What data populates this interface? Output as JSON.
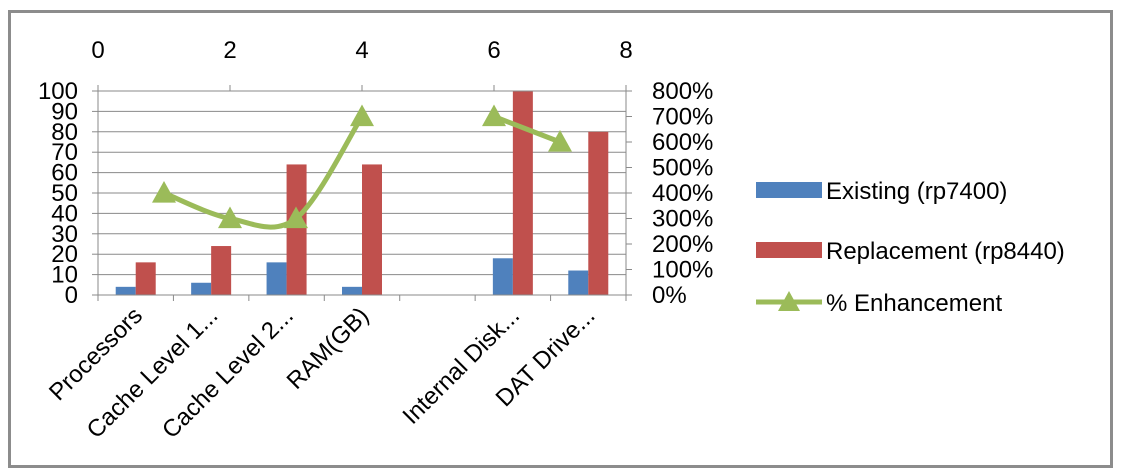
{
  "chart_data": {
    "type": "bar",
    "categories": [
      "Processors",
      "Cache Level 1...",
      "Cache Level 2...",
      "RAM(GB)",
      "",
      "Internal Disk...",
      "DAT Drive..."
    ],
    "series": [
      {
        "name": "Existing  (rp7400)",
        "type": "bar",
        "axis": "primary-y",
        "color": "#4f81bd",
        "values": [
          4,
          6,
          16,
          4,
          null,
          18,
          12
        ]
      },
      {
        "name": "Replacement (rp8440)",
        "type": "bar",
        "axis": "primary-y",
        "color": "#c0504d",
        "values": [
          16,
          24,
          64,
          64,
          null,
          100,
          80
        ]
      },
      {
        "name": "% Enhancement",
        "type": "line",
        "marker": "triangle",
        "axis": "secondary-y",
        "color": "#9bbb59",
        "x": [
          1,
          2,
          3,
          4,
          6,
          7
        ],
        "values": [
          400,
          300,
          300,
          700,
          700,
          600
        ]
      }
    ],
    "y_axis": {
      "min": 0,
      "max": 100,
      "ticks": [
        "0",
        "10",
        "20",
        "30",
        "40",
        "50",
        "60",
        "70",
        "80",
        "90",
        "100"
      ]
    },
    "y2_axis": {
      "min": 0,
      "max": 800,
      "ticks": [
        "0%",
        "100%",
        "200%",
        "300%",
        "400%",
        "500%",
        "600%",
        "700%",
        "800%"
      ]
    },
    "x2_axis": {
      "min": 0,
      "max": 8,
      "position": "top",
      "ticks": [
        "0",
        "2",
        "4",
        "6",
        "8"
      ]
    },
    "legend": {
      "placement": "right"
    },
    "grid": true
  }
}
